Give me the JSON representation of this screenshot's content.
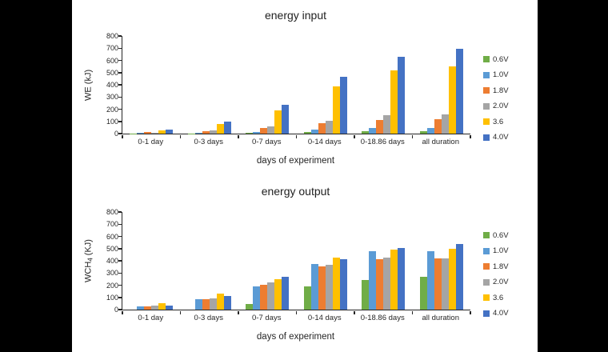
{
  "page": {
    "background_color": "#000000",
    "panel_color": "#ffffff",
    "axis_color": "#262626",
    "text_color": "#262626"
  },
  "chart_data": [
    {
      "type": "bar",
      "title": "energy input",
      "xlabel": "days of experiment",
      "ylabel": {
        "pre": "WE (kJ)",
        "sub": "",
        "post": ""
      },
      "ylim": [
        0,
        800
      ],
      "ytick_step": 100,
      "grid": false,
      "legend_position": "right",
      "categories": [
        "0-1 day",
        "0-3 days",
        "0-7 days",
        "0-14 days",
        "0-18.86 days",
        "all duration"
      ],
      "series": [
        {
          "name": "0.6V",
          "color": "#70AD47",
          "values": [
            2,
            3,
            6,
            13,
            18,
            20
          ]
        },
        {
          "name": "1.0V",
          "color": "#5B9BD5",
          "values": [
            4,
            8,
            14,
            32,
            48,
            48
          ]
        },
        {
          "name": "1.8V",
          "color": "#ED7D31",
          "values": [
            10,
            23,
            46,
            84,
            113,
            117
          ]
        },
        {
          "name": "2.0V",
          "color": "#A5A5A5",
          "values": [
            6,
            25,
            56,
            108,
            148,
            155
          ]
        },
        {
          "name": "3.6",
          "color": "#FFC000",
          "values": [
            27,
            82,
            192,
            384,
            520,
            550
          ]
        },
        {
          "name": "4.0V",
          "color": "#4472C4",
          "values": [
            34,
            101,
            237,
            467,
            630,
            698
          ]
        }
      ]
    },
    {
      "type": "bar",
      "title": "energy output",
      "xlabel": "days of experiment",
      "ylabel": {
        "pre": "WCH",
        "sub": "4",
        "post": " (KJ)"
      },
      "ylim": [
        0,
        800
      ],
      "ytick_step": 100,
      "grid": false,
      "legend_position": "right",
      "categories": [
        "0-1 day",
        "0-3 days",
        "0-7 days",
        "0-14 days",
        "0-18.86 days",
        "all duration"
      ],
      "series": [
        {
          "name": "0.6V",
          "color": "#70AD47",
          "values": [
            0,
            0,
            45,
            190,
            243,
            270
          ]
        },
        {
          "name": "1.0V",
          "color": "#5B9BD5",
          "values": [
            28,
            83,
            188,
            372,
            478,
            478
          ]
        },
        {
          "name": "1.8V",
          "color": "#ED7D31",
          "values": [
            27,
            88,
            205,
            352,
            415,
            420
          ]
        },
        {
          "name": "2.0V",
          "color": "#A5A5A5",
          "values": [
            31,
            93,
            222,
            370,
            425,
            423
          ]
        },
        {
          "name": "3.6",
          "color": "#FFC000",
          "values": [
            55,
            132,
            250,
            424,
            489,
            500
          ]
        },
        {
          "name": "4.0V",
          "color": "#4472C4",
          "values": [
            36,
            110,
            272,
            410,
            502,
            535
          ]
        }
      ]
    }
  ]
}
